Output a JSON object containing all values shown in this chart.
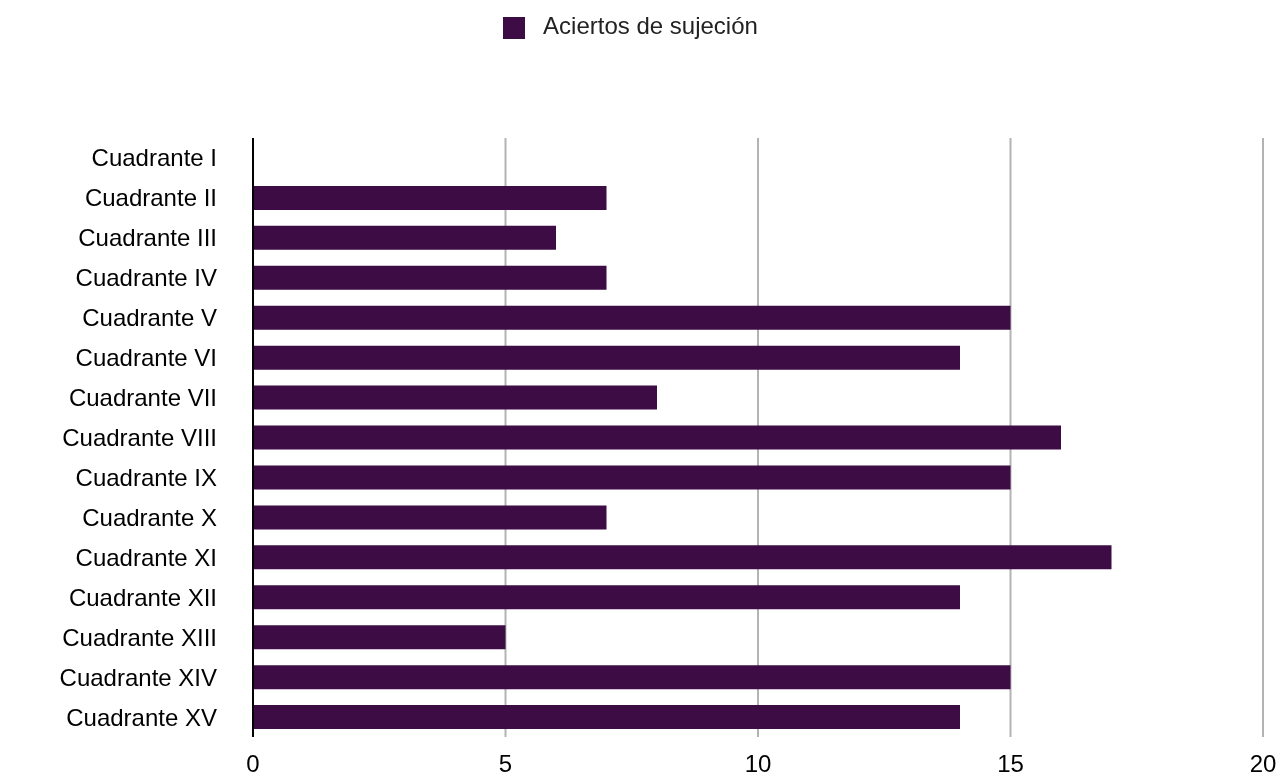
{
  "chart_data": {
    "type": "bar",
    "orientation": "horizontal",
    "categories": [
      "Cuadrante I",
      "Cuadrante II",
      "Cuadrante III",
      "Cuadrante IV",
      "Cuadrante V",
      "Cuadrante VI",
      "Cuadrante VII",
      "Cuadrante VIII",
      "Cuadrante IX",
      "Cuadrante X",
      "Cuadrante XI",
      "Cuadrante XII",
      "Cuadrante XIII",
      "Cuadrante XIV",
      "Cuadrante XV"
    ],
    "series": [
      {
        "name": "Aciertos de sujeción",
        "color": "#3d0c45",
        "values": [
          0,
          7,
          6,
          7,
          15,
          14,
          8,
          16,
          15,
          7,
          17,
          14,
          5,
          15,
          14
        ]
      }
    ],
    "xlim": [
      0,
      20
    ],
    "xticks": [
      0,
      5,
      10,
      15,
      20
    ],
    "grid": "x",
    "legend": "top"
  }
}
